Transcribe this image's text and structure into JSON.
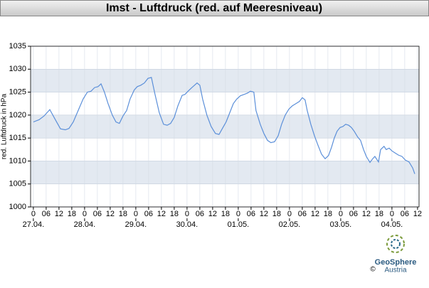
{
  "chart_data": {
    "type": "line",
    "title": "Imst - Luftdruck (red. auf Meeresniveau)",
    "y_label": "red. Luftdruck in hPa",
    "x": [
      0,
      2.7,
      5,
      7.7,
      10.3,
      12.7,
      15,
      16.7,
      18.7,
      21,
      23.3,
      25.3,
      27,
      28.7,
      30.3,
      31.7,
      33.3,
      35,
      37,
      38.7,
      40.3,
      42,
      43.7,
      45.3,
      47.3,
      48.7,
      50.3,
      52,
      53.7,
      55.3,
      57,
      59,
      61,
      62.7,
      64.3,
      66,
      67.7,
      69.7,
      71,
      72.7,
      74.3,
      76.7,
      78,
      79.3,
      81.3,
      83.3,
      85.3,
      87,
      88.7,
      90.3,
      92,
      93.7,
      95.3,
      97,
      98.7,
      100.3,
      101.7,
      103.3,
      104.3,
      106.3,
      108,
      109.7,
      111.3,
      113,
      114.7,
      116.3,
      118,
      119.7,
      121.3,
      123,
      124.7,
      126,
      127.3,
      128.3,
      130,
      131.7,
      133.3,
      135,
      136.7,
      138.3,
      139.7,
      141,
      142.3,
      143.7,
      145,
      146.3,
      147.7,
      149,
      150.3,
      152,
      153.3,
      154.7,
      156,
      157.7,
      159,
      160,
      161.7,
      162.7,
      164.3,
      165.3,
      166.7,
      168,
      169.3,
      171,
      172.7,
      174.3,
      176,
      177.7,
      178.7
    ],
    "series": [
      {
        "name": "Luftdruck",
        "color": "#5b8fd9",
        "values": [
          1018.5,
          1019,
          1019.8,
          1021.2,
          1019,
          1017,
          1016.8,
          1017.1,
          1018.5,
          1021,
          1023.5,
          1025,
          1025.2,
          1026,
          1026.2,
          1026.8,
          1025,
          1022.5,
          1020,
          1018.5,
          1018.2,
          1019.8,
          1021,
          1023.5,
          1025.5,
          1026.2,
          1026.5,
          1027,
          1028,
          1028.2,
          1024.5,
          1020.5,
          1018,
          1017.8,
          1018.2,
          1019.5,
          1022,
          1024.3,
          1024.5,
          1025.3,
          1026,
          1027,
          1026.5,
          1023.5,
          1020,
          1017.5,
          1016,
          1015.8,
          1017.2,
          1018.5,
          1020.5,
          1022.5,
          1023.5,
          1024.2,
          1024.5,
          1024.8,
          1025.2,
          1025,
          1021,
          1018,
          1016,
          1014.5,
          1014,
          1014.2,
          1015.5,
          1018,
          1020,
          1021.3,
          1022,
          1022.5,
          1023,
          1023.8,
          1023.3,
          1021,
          1018,
          1015.5,
          1013.5,
          1011.5,
          1010.5,
          1011.2,
          1013,
          1015,
          1016.5,
          1017.3,
          1017.5,
          1018,
          1017.8,
          1017.3,
          1016.5,
          1015.2,
          1014.5,
          1012.5,
          1011,
          1009.7,
          1010.5,
          1011,
          1009.8,
          1012.5,
          1013.2,
          1012.5,
          1012.8,
          1012.2,
          1011.8,
          1011.3,
          1011,
          1010.2,
          1009.8,
          1008.5,
          1007.2
        ]
      }
    ],
    "xlim": [
      -1.3,
      180.7
    ],
    "xticks": [
      0,
      {
        "value": 6,
        "label": "06"
      },
      12,
      18,
      {
        "value": 24,
        "label": "0"
      },
      {
        "value": 30,
        "label": "06"
      },
      {
        "value": 36,
        "label": "12"
      },
      {
        "value": 42,
        "label": "18"
      },
      {
        "value": 48,
        "label": "0"
      },
      {
        "value": 54,
        "label": "06"
      },
      {
        "value": 60,
        "label": "12"
      },
      {
        "value": 66,
        "label": "18"
      },
      {
        "value": 72,
        "label": "0"
      },
      {
        "value": 78,
        "label": "06"
      },
      {
        "value": 84,
        "label": "12"
      },
      {
        "value": 90,
        "label": "18"
      },
      {
        "value": 96,
        "label": "0"
      },
      {
        "value": 102,
        "label": "06"
      },
      {
        "value": 108,
        "label": "12"
      },
      {
        "value": 114,
        "label": "18"
      },
      {
        "value": 120,
        "label": "0"
      },
      {
        "value": 126,
        "label": "06"
      },
      {
        "value": 132,
        "label": "12"
      },
      {
        "value": 138,
        "label": "18"
      },
      {
        "value": 144,
        "label": "0"
      },
      {
        "value": 150,
        "label": "06"
      },
      {
        "value": 156,
        "label": "12"
      },
      {
        "value": 162,
        "label": "18"
      },
      {
        "value": 168,
        "label": "0"
      },
      {
        "value": 174,
        "label": "06"
      },
      {
        "value": 180,
        "label": "12"
      }
    ],
    "xdates": [
      {
        "value": 0,
        "label": "27.04."
      },
      {
        "value": 24,
        "label": "28.04."
      },
      {
        "value": 48,
        "label": "29.04."
      },
      {
        "value": 72,
        "label": "30.04."
      },
      {
        "value": 96,
        "label": "01.05."
      },
      {
        "value": 120,
        "label": "02.05."
      },
      {
        "value": 144,
        "label": "03.05."
      },
      {
        "value": 168,
        "label": "04.05."
      }
    ],
    "ylim": [
      1000,
      1035
    ],
    "yticks": [
      1000,
      1005,
      1010,
      1015,
      1020,
      1025,
      1030,
      1035
    ],
    "grid": true,
    "band_color": "#e3e9f1",
    "logo": {
      "name": "GeoSphere",
      "sub": "Austria",
      "copyright": "©"
    }
  }
}
